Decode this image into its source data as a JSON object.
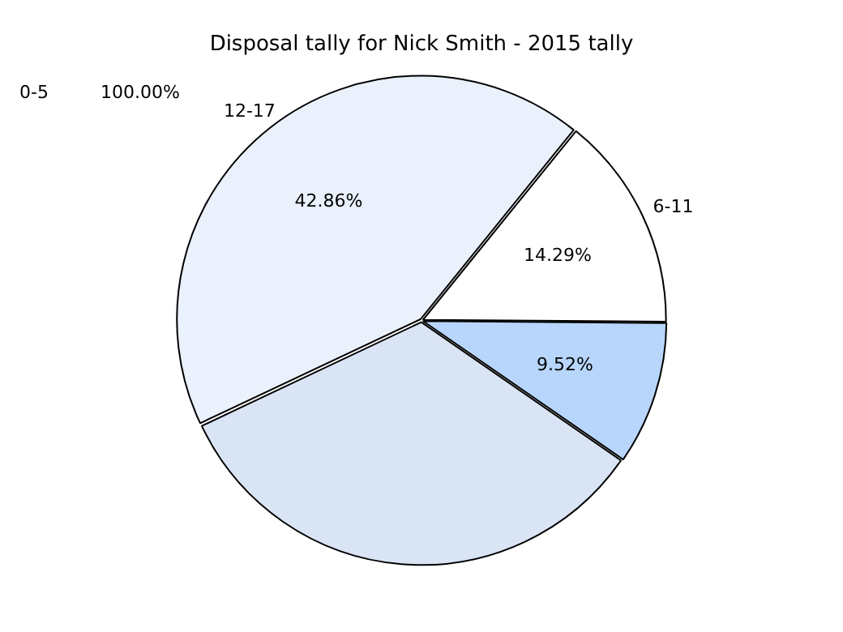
{
  "chart_data": {
    "type": "pie",
    "title": "Disposal tally for Nick Smith - 2015 tally",
    "categories": [
      "6-11",
      null,
      null,
      "12-17"
    ],
    "values": [
      14.29,
      9.52,
      33.33,
      42.86
    ],
    "colors": [
      "#ffffff",
      "#b8d6fb",
      "#d9e4f5",
      "#eaf1fd"
    ],
    "value_labels": [
      "14.29%",
      "9.52%",
      null,
      "42.86%"
    ],
    "annotations": [
      "0-5",
      "100.00%"
    ],
    "legend": false
  }
}
